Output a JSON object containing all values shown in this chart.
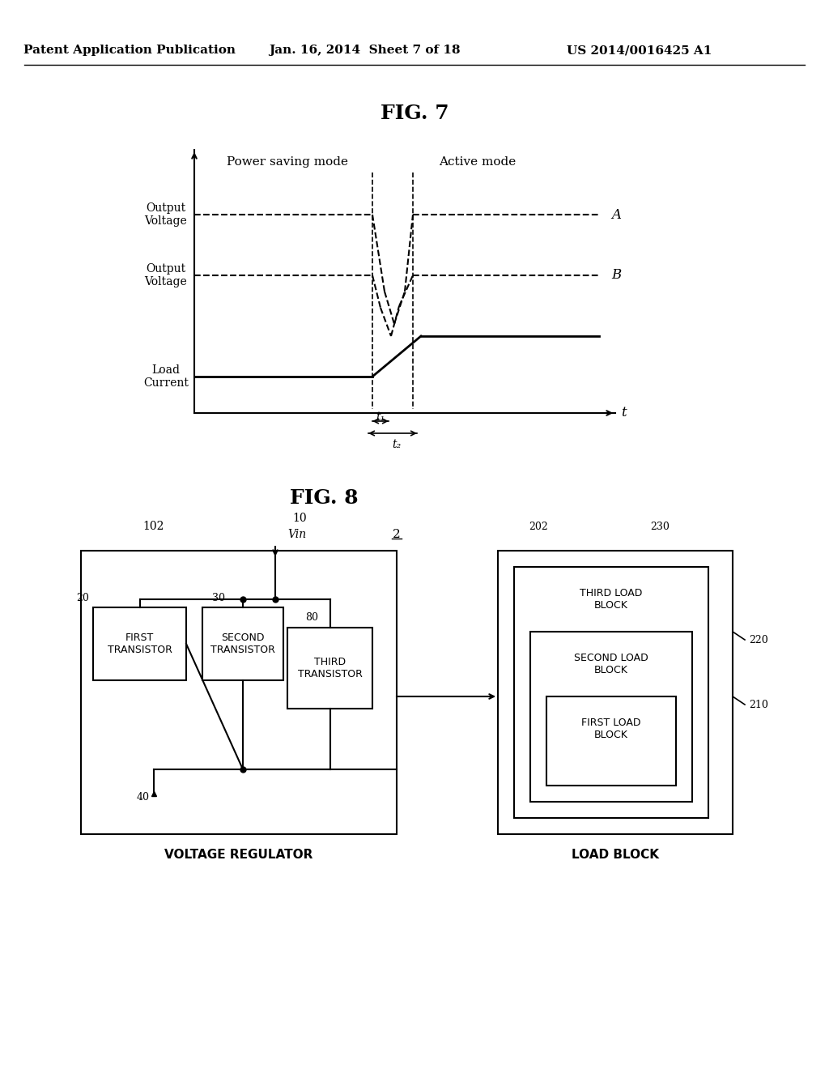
{
  "header_left": "Patent Application Publication",
  "header_mid": "Jan. 16, 2014  Sheet 7 of 18",
  "header_right": "US 2014/0016425 A1",
  "fig7_title": "FIG. 7",
  "fig8_title": "FIG. 8",
  "bg_color": "#ffffff",
  "text_color": "#000000",
  "fig7": {
    "power_saving_label": "Power saving mode",
    "active_label": "Active mode",
    "output_voltage_A_label": "Output\nVoltage",
    "output_voltage_B_label": "Output\nVoltage",
    "load_current_label": "Load\nCurrent",
    "label_A": "A",
    "label_B": "B",
    "label_t": "t",
    "label_t1": "t₁",
    "label_t2": "t₂"
  },
  "fig8": {
    "label_2": "2",
    "label_10": "10",
    "label_Vin": "Vin",
    "label_102": "102",
    "label_20": "20",
    "label_30": "30",
    "label_80": "80",
    "label_40": "40",
    "label_202": "202",
    "label_230": "230",
    "label_220": "220",
    "label_210": "210",
    "first_transistor": "FIRST\nTRANSISTOR",
    "second_transistor": "SECOND\nTRANSISTOR",
    "third_transistor": "THIRD\nTRANSISTOR",
    "third_load": "THIRD LOAD\nBLOCK",
    "second_load": "SECOND LOAD\nBLOCK",
    "first_load": "FIRST LOAD\nBLOCK",
    "voltage_regulator_label": "VOLTAGE REGULATOR",
    "load_block_label": "LOAD BLOCK"
  }
}
